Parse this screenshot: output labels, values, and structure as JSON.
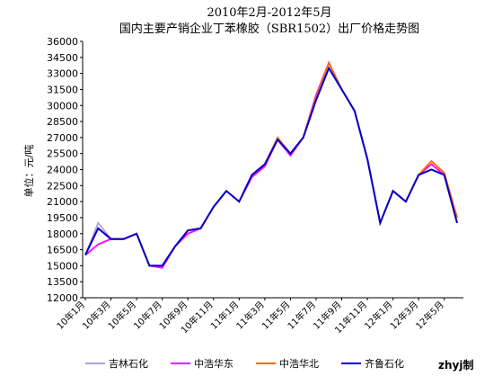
{
  "chart_data": {
    "type": "line",
    "title": "2010年2月-2012年5月",
    "subtitle": "国内主要产销企业丁苯橡胶（SBR1502）出厂价格走势图",
    "y_label": "单位：元/吨",
    "note": "zhyj制",
    "categories": [
      "10年1月",
      null,
      "10年3月",
      null,
      "10年5月",
      null,
      "10年7月",
      null,
      "10年9月",
      null,
      "10年11月",
      null,
      "11年1月",
      null,
      "11年3月",
      null,
      "11年5月",
      null,
      "11年7月",
      null,
      "11年9月",
      null,
      "11年11月",
      null,
      "12年1月",
      null,
      "12年3月",
      null,
      "12年5月",
      null
    ],
    "ylim": [
      12000,
      36000
    ],
    "yticks": [
      12000,
      13500,
      15000,
      16500,
      18000,
      19500,
      21000,
      22500,
      24000,
      25500,
      27000,
      28500,
      30000,
      31500,
      33000,
      34500,
      36000
    ],
    "grid": false,
    "series": [
      {
        "name": "吉林石化",
        "color": "#b39ddb",
        "values": [
          16000,
          19000,
          17500,
          17500,
          18000,
          15000,
          15000,
          16800,
          18300,
          18500,
          20500,
          22000,
          21000,
          23500,
          24500,
          26800,
          25500,
          27000,
          30500,
          33500,
          31500,
          29500,
          25000,
          19000,
          22000,
          21000,
          23500,
          24000,
          23500,
          19000
        ]
      },
      {
        "name": "中浩华东",
        "color": "#ff00ff",
        "values": [
          16000,
          17000,
          17500,
          17500,
          18000,
          15000,
          14800,
          16800,
          18000,
          18500,
          20500,
          22000,
          21000,
          23300,
          24300,
          26800,
          25300,
          27000,
          31000,
          34000,
          31500,
          29500,
          25000,
          19000,
          22000,
          21000,
          23500,
          24500,
          23500,
          19500
        ]
      },
      {
        "name": "中浩华北",
        "color": "#ff6600",
        "values": [
          16000,
          18500,
          17500,
          17500,
          18000,
          15000,
          15000,
          16800,
          18300,
          18500,
          20500,
          22000,
          21000,
          23500,
          24500,
          27000,
          25500,
          27000,
          30800,
          34000,
          31500,
          29500,
          25000,
          19000,
          22000,
          21000,
          23500,
          24800,
          23700,
          19500
        ]
      },
      {
        "name": "齐鲁石化",
        "color": "#0000cc",
        "values": [
          16000,
          18500,
          17500,
          17500,
          18000,
          15000,
          15000,
          16800,
          18300,
          18500,
          20500,
          22000,
          21000,
          23500,
          24500,
          26800,
          25500,
          27000,
          30500,
          33500,
          31500,
          29500,
          25000,
          19000,
          22000,
          21000,
          23500,
          24000,
          23500,
          19000
        ]
      }
    ]
  }
}
